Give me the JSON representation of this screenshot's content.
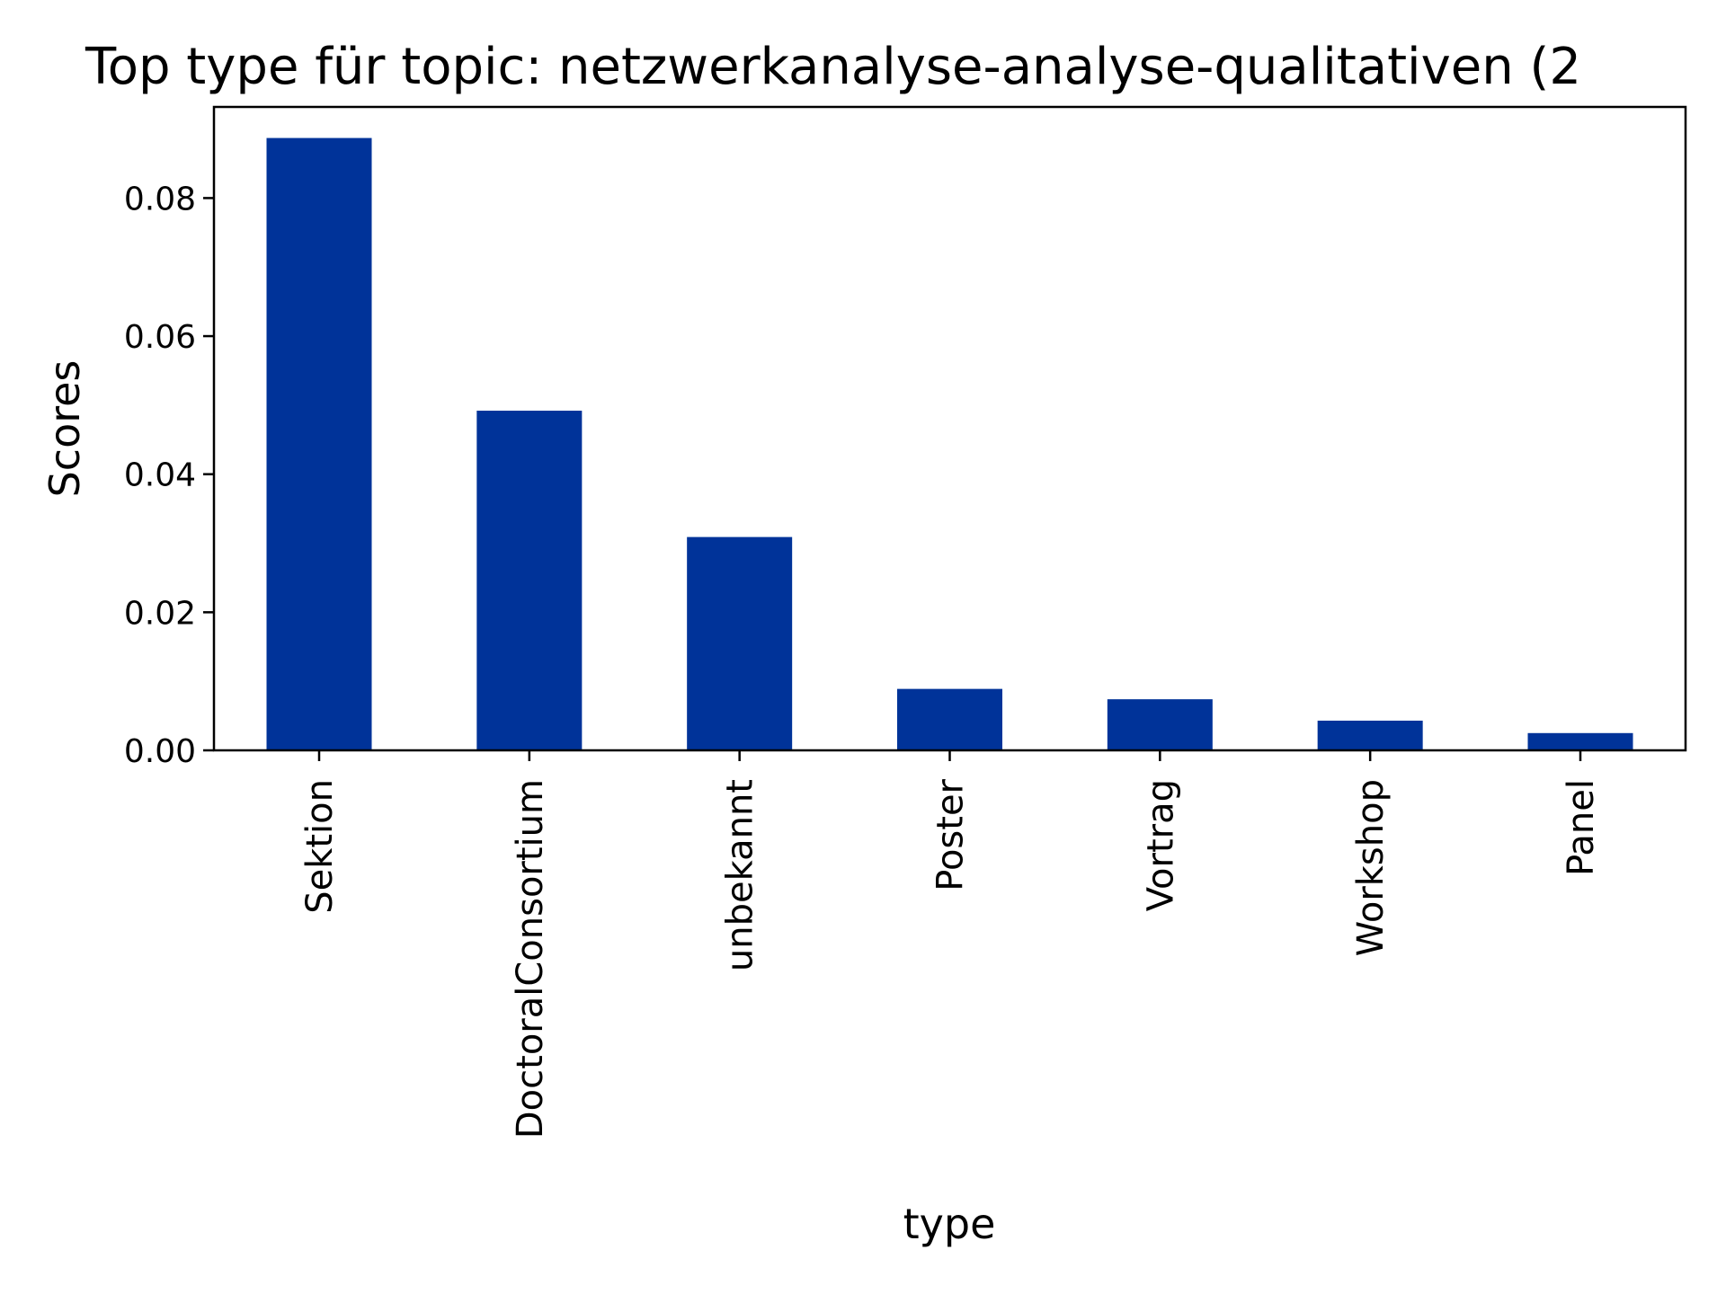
{
  "chart_data": {
    "type": "bar",
    "title": "Top type für topic: netzwerkanalyse-analyse-qualitativen (2",
    "xlabel": "type",
    "ylabel": "Scores",
    "categories": [
      "Sektion",
      "DoctoralConsortium",
      "unbekannt",
      "Poster",
      "Vortrag",
      "Workshop",
      "Panel"
    ],
    "values": [
      0.0887,
      0.0492,
      0.0309,
      0.0089,
      0.0074,
      0.0043,
      0.0025
    ],
    "ylim": [
      0,
      0.0932
    ],
    "yticks": [
      0.0,
      0.02,
      0.04,
      0.06,
      0.08
    ],
    "ytick_labels": [
      "0.00",
      "0.02",
      "0.04",
      "0.06",
      "0.08"
    ],
    "bar_color": "#003399",
    "grid": false,
    "legend": "none"
  }
}
